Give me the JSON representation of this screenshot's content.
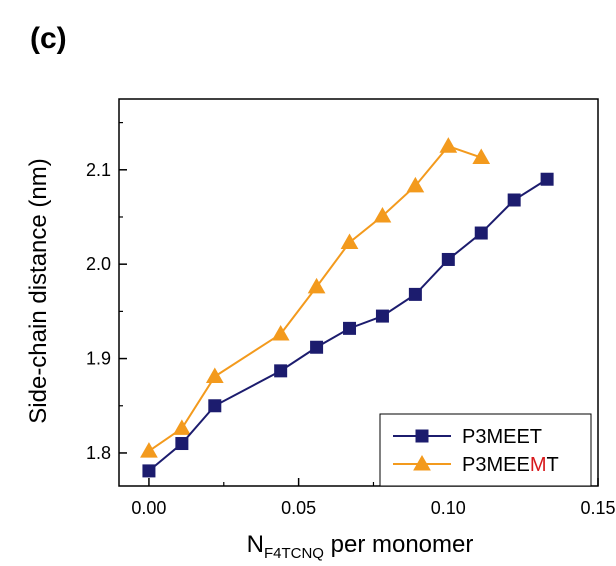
{
  "panel_label": "(c)",
  "chart_data": {
    "type": "line",
    "xlabel": {
      "main": "N",
      "sub": "F4TCNQ",
      "suffix": " per monomer"
    },
    "ylabel": "Side-chain distance (nm)",
    "xlim": [
      -0.01,
      0.15
    ],
    "ylim": [
      1.765,
      2.175
    ],
    "x_ticks": [
      0.0,
      0.05,
      0.1,
      0.15
    ],
    "x_tick_labels": [
      "0.00",
      "0.05",
      "0.10",
      "0.15"
    ],
    "y_ticks": [
      1.8,
      1.9,
      2.0,
      2.1
    ],
    "y_tick_labels": [
      "1.8",
      "1.9",
      "2.0",
      "2.1"
    ],
    "grid": false,
    "legend_position": "bottom-right",
    "series": [
      {
        "name": "P3MEET",
        "legend_parts": [
          {
            "text": "P3MEET",
            "color": "#000000"
          }
        ],
        "color": "#1c1c6e",
        "marker": "square",
        "x": [
          0.0,
          0.011,
          0.022,
          0.044,
          0.056,
          0.067,
          0.078,
          0.089,
          0.1,
          0.111,
          0.122,
          0.133
        ],
        "y": [
          1.781,
          1.81,
          1.85,
          1.887,
          1.912,
          1.932,
          1.945,
          1.968,
          2.005,
          2.033,
          2.068,
          2.09
        ]
      },
      {
        "name": "P3MEEMT",
        "legend_parts": [
          {
            "text": "P3MEE",
            "color": "#000000"
          },
          {
            "text": "M",
            "color": "#d7191c"
          },
          {
            "text": "T",
            "color": "#000000"
          }
        ],
        "color": "#f39a1d",
        "marker": "triangle",
        "x": [
          0.0,
          0.011,
          0.022,
          0.044,
          0.056,
          0.067,
          0.078,
          0.089,
          0.1,
          0.111
        ],
        "y": [
          1.802,
          1.826,
          1.881,
          1.926,
          1.976,
          2.023,
          2.051,
          2.083,
          2.125,
          2.113
        ]
      }
    ]
  }
}
